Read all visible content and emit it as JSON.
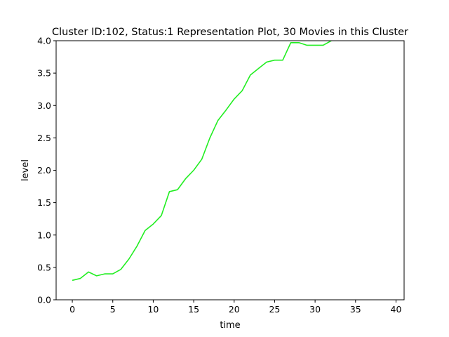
{
  "chart_data": {
    "type": "line",
    "title": "Cluster ID:102, Status:1 Representation Plot, 30 Movies in this Cluster",
    "xlabel": "time",
    "ylabel": "level",
    "xlim": [
      -2,
      41
    ],
    "ylim": [
      0,
      4.0
    ],
    "xticks": [
      0,
      5,
      10,
      15,
      20,
      25,
      30,
      35,
      40
    ],
    "yticks": [
      0.0,
      0.5,
      1.0,
      1.5,
      2.0,
      2.5,
      3.0,
      3.5,
      4.0
    ],
    "xtick_labels": [
      "0",
      "5",
      "10",
      "15",
      "20",
      "25",
      "30",
      "35",
      "40"
    ],
    "ytick_labels": [
      "0.0",
      "0.5",
      "1.0",
      "1.5",
      "2.0",
      "2.5",
      "3.0",
      "3.5",
      "4.0"
    ],
    "grid": false,
    "series": [
      {
        "color": "#22ee22",
        "x": [
          0,
          1,
          2,
          3,
          4,
          5,
          6,
          7,
          8,
          9,
          10,
          11,
          12,
          13,
          14,
          15,
          16,
          17,
          18,
          19,
          20,
          21,
          22,
          23,
          24,
          25,
          26,
          27,
          28,
          29,
          30,
          31,
          32
        ],
        "y": [
          0.3,
          0.33,
          0.43,
          0.37,
          0.4,
          0.4,
          0.47,
          0.63,
          0.83,
          1.07,
          1.17,
          1.3,
          1.67,
          1.7,
          1.87,
          2.0,
          2.17,
          2.5,
          2.77,
          2.93,
          3.1,
          3.23,
          3.47,
          3.57,
          3.67,
          3.7,
          3.7,
          3.97,
          3.97,
          3.93,
          3.93,
          3.93,
          4.0
        ]
      }
    ]
  }
}
